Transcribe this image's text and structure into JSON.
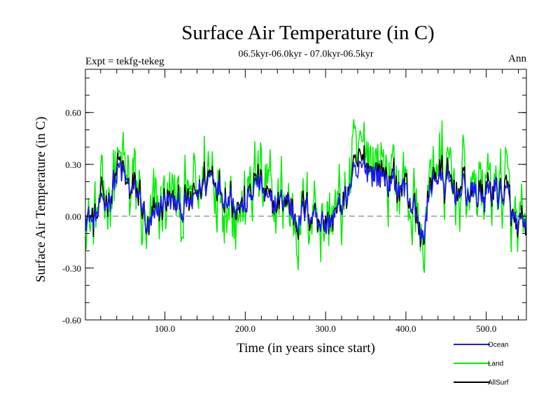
{
  "chart_data": {
    "type": "line",
    "title": "Surface Air Temperature (in C)",
    "subtitle": "06.5kyr-06.0kyr - 07.0kyr-06.5kyr",
    "left_label": "Expt = tekfg-tekeg",
    "right_label": "Ann",
    "xlabel": "Time (in years since start)",
    "ylabel": "Surface Air Temperature (in C)",
    "xlim": [
      1,
      550
    ],
    "ylim": [
      -0.6,
      0.85
    ],
    "x_ticks": [
      100,
      200,
      300,
      400,
      500
    ],
    "x_tick_labels": [
      "100.0",
      "200.0",
      "300.0",
      "400.0",
      "500.0"
    ],
    "y_ticks": [
      -0.6,
      -0.3,
      0.0,
      0.3,
      0.6
    ],
    "y_tick_labels": [
      "-0.60",
      "-0.30",
      "0.00",
      "0.30",
      "0.60"
    ],
    "zero_line": 0.0,
    "anchors_x": [
      1,
      10,
      20,
      30,
      40,
      45,
      55,
      70,
      78,
      90,
      100,
      115,
      130,
      150,
      160,
      170,
      185,
      200,
      210,
      215,
      230,
      250,
      265,
      285,
      300,
      320,
      335,
      350,
      370,
      385,
      400,
      410,
      420,
      435,
      440,
      455,
      470,
      490,
      510,
      525,
      535,
      550
    ],
    "series": [
      {
        "name": "Ocean",
        "color": "#1a1aff",
        "amplitude": 0.06,
        "offset": 0.0,
        "values": [
          0.05,
          -0.05,
          0.05,
          0.1,
          0.25,
          0.25,
          0.15,
          0.1,
          -0.1,
          0.0,
          0.1,
          0.05,
          0.05,
          0.2,
          0.25,
          0.15,
          0.1,
          0.05,
          0.15,
          0.2,
          0.05,
          0.1,
          0.0,
          0.05,
          -0.05,
          0.05,
          0.2,
          0.28,
          0.22,
          0.18,
          0.15,
          0.05,
          -0.15,
          0.25,
          0.22,
          0.15,
          0.15,
          0.12,
          0.15,
          0.12,
          -0.05,
          -0.1
        ]
      },
      {
        "name": "Land",
        "color": "#00ee00",
        "amplitude": 0.17,
        "offset": 0.02,
        "values": [
          0.05,
          -0.05,
          0.05,
          0.1,
          0.3,
          0.28,
          0.15,
          0.1,
          -0.15,
          0.0,
          0.1,
          0.05,
          0.05,
          0.25,
          0.3,
          0.18,
          0.12,
          0.05,
          0.18,
          0.25,
          0.05,
          0.1,
          0.0,
          0.05,
          -0.05,
          0.05,
          0.28,
          0.4,
          0.3,
          0.22,
          0.18,
          0.05,
          -0.2,
          0.35,
          0.3,
          0.18,
          0.18,
          0.15,
          0.18,
          0.15,
          -0.1,
          -0.15
        ]
      },
      {
        "name": "AllSurf",
        "color": "#000000",
        "amplitude": 0.08,
        "offset": 0.01,
        "values": [
          0.05,
          -0.05,
          0.05,
          0.1,
          0.27,
          0.26,
          0.15,
          0.1,
          -0.12,
          0.0,
          0.1,
          0.05,
          0.05,
          0.22,
          0.27,
          0.16,
          0.11,
          0.05,
          0.16,
          0.22,
          0.05,
          0.1,
          0.0,
          0.05,
          -0.05,
          0.05,
          0.23,
          0.32,
          0.25,
          0.2,
          0.16,
          0.05,
          -0.17,
          0.28,
          0.25,
          0.16,
          0.16,
          0.13,
          0.16,
          0.13,
          -0.07,
          -0.12
        ]
      }
    ]
  }
}
